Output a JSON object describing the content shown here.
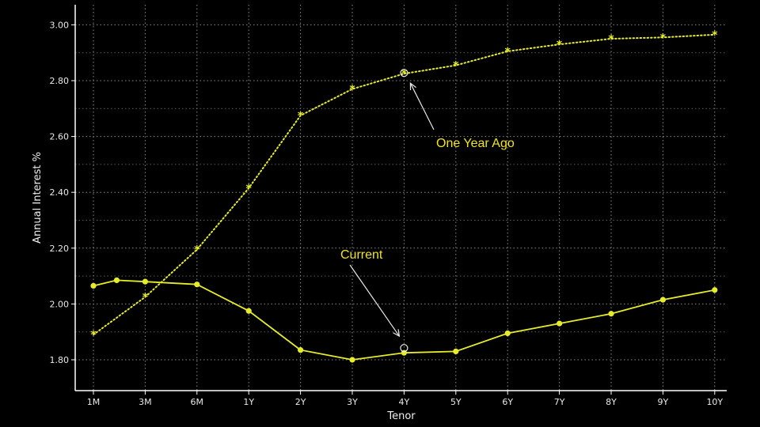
{
  "chart_data": {
    "type": "line",
    "categories": [
      "1M",
      "3M",
      "6M",
      "1Y",
      "2Y",
      "3Y",
      "4Y",
      "5Y",
      "6Y",
      "7Y",
      "8Y",
      "9Y",
      "10Y"
    ],
    "xlabel": "Tenor",
    "ylabel": "Annual Interest %",
    "ylim": [
      1.75,
      3.05
    ],
    "yticks": [
      "1.80",
      "2.00",
      "2.20",
      "2.40",
      "2.60",
      "2.80",
      "3.00"
    ],
    "grid": true,
    "series": [
      {
        "name": "Current",
        "style": "solid",
        "marker": "dot",
        "color": "#e6ec2c",
        "points": [
          {
            "x": 0,
            "y": 2.065
          },
          {
            "x": 0.45,
            "y": 2.085
          },
          {
            "x": 1,
            "y": 2.08
          },
          {
            "x": 2,
            "y": 2.07
          },
          {
            "x": 3,
            "y": 1.975
          },
          {
            "x": 4,
            "y": 1.835
          },
          {
            "x": 5,
            "y": 1.8
          },
          {
            "x": 6,
            "y": 1.825
          },
          {
            "x": 7,
            "y": 1.83
          },
          {
            "x": 8,
            "y": 1.895
          },
          {
            "x": 9,
            "y": 1.93
          },
          {
            "x": 10,
            "y": 1.965
          },
          {
            "x": 11,
            "y": 2.015
          },
          {
            "x": 12,
            "y": 2.05
          }
        ]
      },
      {
        "name": "One Year Ago",
        "style": "dotted",
        "marker": "star",
        "color": "#e6ec2c",
        "points": [
          {
            "x": 0,
            "y": 1.89
          },
          {
            "x": 1,
            "y": 2.025
          },
          {
            "x": 2,
            "y": 2.195
          },
          {
            "x": 3,
            "y": 2.415
          },
          {
            "x": 4,
            "y": 2.675
          },
          {
            "x": 5,
            "y": 2.77
          },
          {
            "x": 6,
            "y": 2.825
          },
          {
            "x": 7,
            "y": 2.855
          },
          {
            "x": 8,
            "y": 2.905
          },
          {
            "x": 9,
            "y": 2.93
          },
          {
            "x": 10,
            "y": 2.95
          },
          {
            "x": 11,
            "y": 2.955
          },
          {
            "x": 12,
            "y": 2.965
          }
        ]
      }
    ],
    "annotations": [
      {
        "text": "One Year Ago",
        "series": "One Year Ago",
        "x": 6,
        "color": "#f0e420"
      },
      {
        "text": "Current",
        "series": "Current",
        "x": 6,
        "color": "#f0e420"
      }
    ]
  }
}
